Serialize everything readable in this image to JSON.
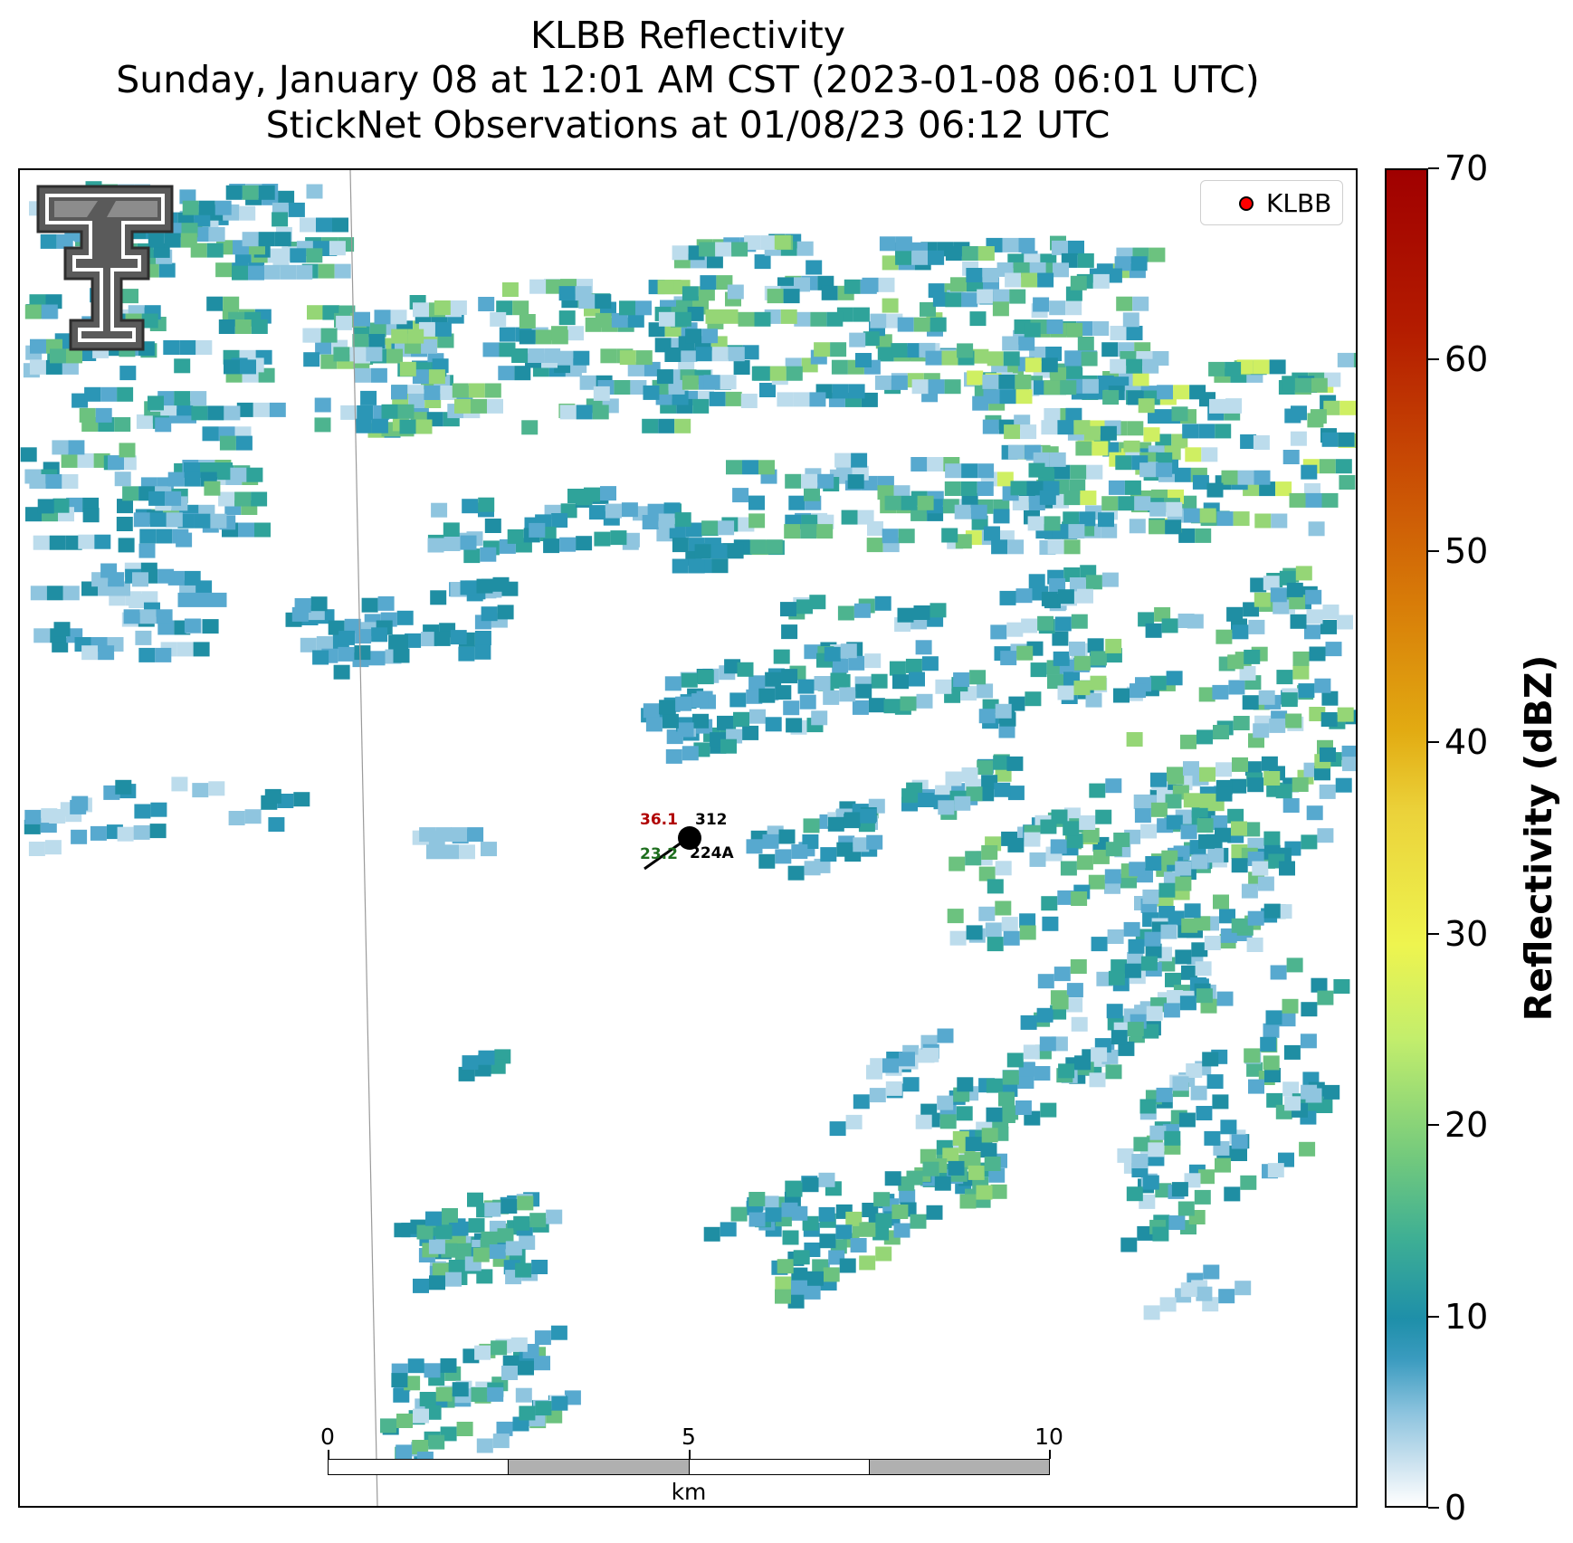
{
  "title": {
    "line1": "KLBB Reflectivity",
    "line2": "Sunday, January 08 at 12:01 AM CST (2023-01-08 06:01 UTC)",
    "line3": "StickNet Observations at 01/08/23 06:12 UTC"
  },
  "legend": {
    "label": "KLBB",
    "marker_color": "#ff0000"
  },
  "colorbar": {
    "label": "Reflectivity (dBZ)",
    "ticks": [
      "0",
      "10",
      "20",
      "30",
      "40",
      "50",
      "60",
      "70"
    ],
    "range": [
      0,
      70
    ]
  },
  "scale_bar": {
    "labels": [
      "0",
      "5",
      "10"
    ],
    "unit": "km"
  },
  "station": {
    "id": "224A",
    "temperature": "36.1",
    "dewpoint": "23.2",
    "wind_direction": "312",
    "temp_color": "#b00000",
    "dew_color": "#1e6e1e"
  },
  "logo": {
    "name": "Texas Tech double-T logo"
  }
}
